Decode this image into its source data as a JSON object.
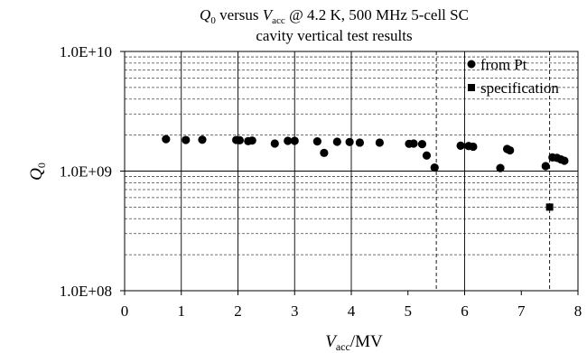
{
  "chart_data": {
    "type": "scatter",
    "title": {
      "q_symbol": "Q",
      "q_sub": "0",
      "mid": " versus ",
      "v_symbol": "V",
      "v_sub": "acc",
      "rest": " @ 4.2 K, 500 MHz 5-cell SC",
      "line2": "cavity vertical test results"
    },
    "ylabel": {
      "symbol": "Q",
      "sub": "0"
    },
    "xlabel": {
      "symbol": "V",
      "sub": "acc",
      "unit": "/MV"
    },
    "x_axis": {
      "range": [
        0,
        8
      ],
      "ticks": [
        0,
        1,
        2,
        3,
        4,
        5,
        6,
        7,
        8
      ],
      "tick_labels": [
        "0",
        "1",
        "2",
        "3",
        "4",
        "5",
        "6",
        "7",
        "8"
      ]
    },
    "y_axis": {
      "scale": "log",
      "range": [
        100000000,
        10000000000
      ],
      "ticks": [
        100000000,
        1000000000,
        10000000000
      ],
      "tick_labels": [
        "1.0E+08",
        "1.0E+09",
        "1.0E+10"
      ]
    },
    "grid": {
      "major": true,
      "minor_y": true,
      "vertical_solid": [
        1,
        2,
        3,
        4,
        6
      ],
      "vertical_dashed": [
        5.5,
        7.5
      ]
    },
    "legend": {
      "placement": "top-right",
      "entries": [
        {
          "label": "from Pt",
          "marker": "circle"
        },
        {
          "label": "specification",
          "marker": "square"
        }
      ]
    },
    "series": [
      {
        "name": "from Pt",
        "marker": "circle",
        "color": "#000000",
        "points": [
          [
            0.73,
            1850000000.0
          ],
          [
            1.08,
            1820000000.0
          ],
          [
            1.37,
            1830000000.0
          ],
          [
            1.97,
            1820000000.0
          ],
          [
            2.03,
            1810000000.0
          ],
          [
            2.18,
            1780000000.0
          ],
          [
            2.25,
            1800000000.0
          ],
          [
            2.65,
            1700000000.0
          ],
          [
            2.88,
            1790000000.0
          ],
          [
            3.0,
            1790000000.0
          ],
          [
            3.4,
            1770000000.0
          ],
          [
            3.52,
            1420000000.0
          ],
          [
            3.75,
            1760000000.0
          ],
          [
            3.97,
            1750000000.0
          ],
          [
            4.15,
            1730000000.0
          ],
          [
            4.5,
            1730000000.0
          ],
          [
            5.02,
            1690000000.0
          ],
          [
            5.1,
            1700000000.0
          ],
          [
            5.25,
            1680000000.0
          ],
          [
            5.33,
            1350000000.0
          ],
          [
            5.47,
            1070000000.0
          ],
          [
            5.93,
            1630000000.0
          ],
          [
            6.07,
            1620000000.0
          ],
          [
            6.15,
            1600000000.0
          ],
          [
            6.63,
            1060000000.0
          ],
          [
            6.75,
            1530000000.0
          ],
          [
            6.8,
            1490000000.0
          ],
          [
            7.43,
            1100000000.0
          ],
          [
            7.55,
            1300000000.0
          ],
          [
            7.63,
            1290000000.0
          ],
          [
            7.7,
            1250000000.0
          ],
          [
            7.76,
            1220000000.0
          ]
        ]
      },
      {
        "name": "specification",
        "marker": "square",
        "color": "#000000",
        "points": [
          [
            7.5,
            500000000.0
          ]
        ]
      }
    ]
  }
}
